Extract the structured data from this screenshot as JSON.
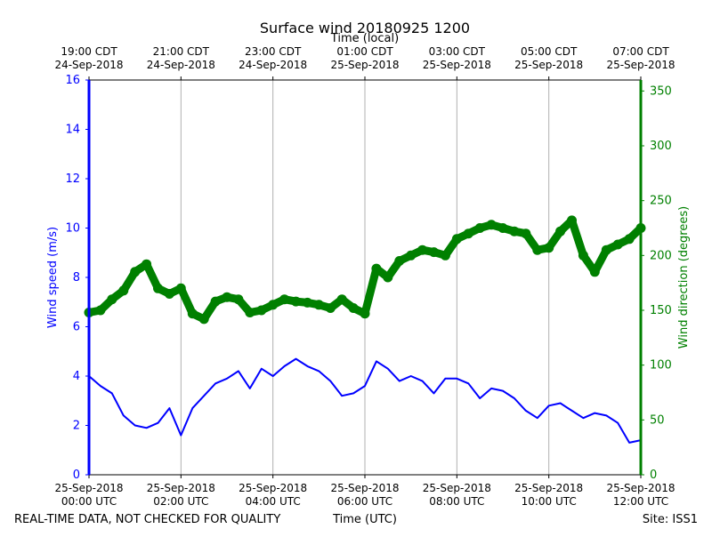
{
  "chart_data": {
    "type": "line",
    "title": "Surface wind 20180925 1200",
    "xlabel_top": "Time (local)",
    "xlabel_bottom": "Time (UTC)",
    "ylabel_left": "Wind speed (m/s)",
    "ylabel_right": "Wind direction (degrees)",
    "footer_left": "REAL-TIME DATA, NOT CHECKED FOR QUALITY",
    "footer_right": "Site: ISS1",
    "colors": {
      "speed": "#0000ff",
      "direction": "#008000",
      "grid": "#b0b0b0",
      "axis": "#000000"
    },
    "x_range_hours_utc": [
      0,
      12
    ],
    "y_left_range": [
      0,
      16
    ],
    "y_right_range": [
      0,
      360
    ],
    "y_left_ticks": [
      "0",
      "2",
      "4",
      "6",
      "8",
      "10",
      "12",
      "14",
      "16"
    ],
    "y_right_ticks": [
      "0",
      "50",
      "100",
      "150",
      "200",
      "250",
      "300",
      "350"
    ],
    "x_ticks_bottom": [
      {
        "hour": 0,
        "line1": "25-Sep-2018",
        "line2": "00:00 UTC"
      },
      {
        "hour": 2,
        "line1": "25-Sep-2018",
        "line2": "02:00 UTC"
      },
      {
        "hour": 4,
        "line1": "25-Sep-2018",
        "line2": "04:00 UTC"
      },
      {
        "hour": 6,
        "line1": "25-Sep-2018",
        "line2": "06:00 UTC"
      },
      {
        "hour": 8,
        "line1": "25-Sep-2018",
        "line2": "08:00 UTC"
      },
      {
        "hour": 10,
        "line1": "25-Sep-2018",
        "line2": "10:00 UTC"
      },
      {
        "hour": 12,
        "line1": "25-Sep-2018",
        "line2": "12:00 UTC"
      }
    ],
    "x_ticks_top": [
      {
        "hour": 0,
        "line1": "19:00 CDT",
        "line2": "24-Sep-2018"
      },
      {
        "hour": 2,
        "line1": "21:00 CDT",
        "line2": "24-Sep-2018"
      },
      {
        "hour": 4,
        "line1": "23:00 CDT",
        "line2": "24-Sep-2018"
      },
      {
        "hour": 6,
        "line1": "01:00 CDT",
        "line2": "25-Sep-2018"
      },
      {
        "hour": 8,
        "line1": "03:00 CDT",
        "line2": "25-Sep-2018"
      },
      {
        "hour": 10,
        "line1": "05:00 CDT",
        "line2": "25-Sep-2018"
      },
      {
        "hour": 12,
        "line1": "07:00 CDT",
        "line2": "25-Sep-2018"
      }
    ],
    "series": [
      {
        "name": "Wind speed (m/s)",
        "axis": "left",
        "hours": [
          0,
          0.25,
          0.5,
          0.75,
          1.0,
          1.25,
          1.5,
          1.75,
          2.0,
          2.25,
          2.5,
          2.75,
          3.0,
          3.25,
          3.5,
          3.75,
          4.0,
          4.25,
          4.5,
          4.75,
          5.0,
          5.25,
          5.5,
          5.75,
          6.0,
          6.25,
          6.5,
          6.75,
          7.0,
          7.25,
          7.5,
          7.75,
          8.0,
          8.25,
          8.5,
          8.75,
          9.0,
          9.25,
          9.5,
          9.75,
          10.0,
          10.25,
          10.5,
          10.75,
          11.0,
          11.25,
          11.5,
          11.75,
          12.0
        ],
        "values": [
          4.0,
          3.6,
          3.3,
          2.4,
          2.0,
          1.9,
          2.1,
          2.7,
          1.6,
          2.7,
          3.2,
          3.7,
          3.9,
          4.2,
          3.5,
          4.3,
          4.0,
          4.4,
          4.7,
          4.4,
          4.2,
          3.8,
          3.2,
          3.3,
          3.6,
          4.6,
          4.3,
          3.8,
          4.0,
          3.8,
          3.3,
          3.9,
          3.9,
          3.7,
          3.1,
          3.5,
          3.4,
          3.1,
          2.6,
          2.3,
          2.8,
          2.9,
          2.6,
          2.3,
          2.5,
          2.4,
          2.1,
          1.3,
          1.4
        ]
      },
      {
        "name": "Wind direction (degrees)",
        "axis": "right",
        "hours": [
          0,
          0.25,
          0.5,
          0.75,
          1.0,
          1.25,
          1.5,
          1.75,
          2.0,
          2.25,
          2.5,
          2.75,
          3.0,
          3.25,
          3.5,
          3.75,
          4.0,
          4.25,
          4.5,
          4.75,
          5.0,
          5.25,
          5.5,
          5.75,
          6.0,
          6.25,
          6.5,
          6.75,
          7.0,
          7.25,
          7.5,
          7.75,
          8.0,
          8.25,
          8.5,
          8.75,
          9.0,
          9.25,
          9.5,
          9.75,
          10.0,
          10.25,
          10.5,
          10.75,
          11.0,
          11.25,
          11.5,
          11.75,
          12.0
        ],
        "values": [
          148,
          150,
          160,
          168,
          185,
          192,
          170,
          165,
          170,
          147,
          142,
          158,
          162,
          160,
          148,
          150,
          155,
          160,
          158,
          157,
          155,
          152,
          160,
          152,
          147,
          188,
          180,
          195,
          200,
          205,
          203,
          200,
          215,
          220,
          225,
          228,
          225,
          222,
          220,
          205,
          207,
          222,
          232,
          200,
          185,
          205,
          210,
          215,
          225
        ]
      }
    ]
  }
}
